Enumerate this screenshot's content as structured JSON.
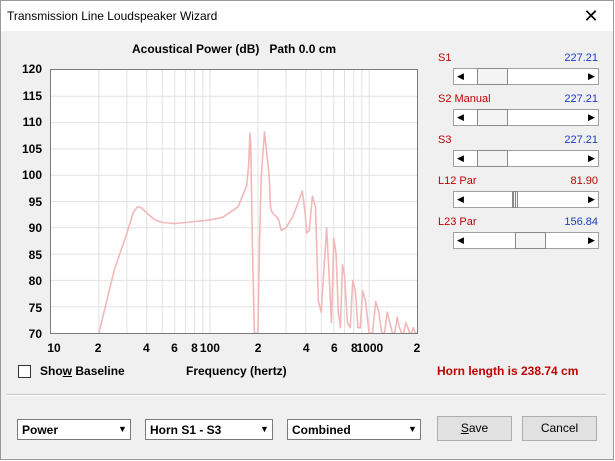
{
  "window": {
    "title": "Transmission Line Loudspeaker Wizard",
    "close": "✕"
  },
  "chart": {
    "title": "Acoustical Power (dB)   Path 0.0 cm",
    "xlabel": "Frequency (hertz)"
  },
  "chart_data": {
    "type": "line",
    "title": "Acoustical Power (dB)   Path 0.0 cm",
    "xlabel": "Frequency (hertz)",
    "ylabel": "",
    "xscale": "log",
    "xlim": [
      10,
      2000
    ],
    "ylim": [
      70,
      120
    ],
    "y_ticks": [
      "120",
      "115",
      "110",
      "105",
      "100",
      "95",
      "90",
      "85",
      "80",
      "75",
      "70"
    ],
    "x_ticks": [
      "10",
      "2",
      "4",
      "6",
      "8",
      "100",
      "2",
      "4",
      "6",
      "8",
      "1000",
      "2"
    ],
    "grid": true,
    "color": "#f2b8b8",
    "series": [
      {
        "x": [
          20,
          25,
          30,
          33,
          35,
          37,
          40,
          45,
          50,
          60,
          70,
          80,
          100,
          120,
          150,
          170,
          175,
          178,
          180,
          182,
          185,
          190,
          200,
          205,
          210,
          220,
          235,
          240,
          245,
          250,
          260,
          270,
          280,
          300,
          330,
          360,
          380,
          395,
          405,
          420,
          440,
          460,
          480,
          500,
          520,
          540,
          560,
          580,
          600,
          620,
          640,
          660,
          680,
          700,
          730,
          760,
          790,
          820,
          850,
          880,
          910,
          950,
          1000,
          1050,
          1100,
          1150,
          1200,
          1250,
          1300,
          1350,
          1400,
          1450,
          1500,
          1550,
          1600,
          1650,
          1700,
          1750,
          1800,
          1850,
          1900,
          1950,
          2000
        ],
        "y": [
          70,
          82,
          89,
          93,
          94,
          93.8,
          92.8,
          91.5,
          91,
          90.8,
          91,
          91.2,
          91.5,
          92,
          94,
          98,
          102,
          108,
          106,
          98,
          85,
          70,
          70,
          88,
          100,
          108.2,
          100,
          94,
          93,
          92.6,
          92.2,
          91.5,
          89.5,
          90,
          92,
          95,
          97,
          93,
          89,
          89.5,
          96,
          94,
          76,
          74,
          82,
          90,
          81,
          72,
          88,
          85,
          74,
          71,
          83,
          81,
          72,
          71,
          80,
          78,
          71,
          71,
          78,
          76,
          70,
          70,
          76,
          74,
          70,
          70,
          74,
          72,
          70,
          70,
          73,
          71,
          70,
          70,
          72,
          71,
          70,
          70,
          71,
          70,
          70
        ]
      }
    ]
  },
  "sliders": [
    {
      "label": "S1",
      "value": "227.21",
      "label_color": "#c00000",
      "value_color": "#1a3cc8",
      "position": 0.12
    },
    {
      "label": "S2  Manual",
      "value": "227.21",
      "label_color": "#c00000",
      "value_color": "#1a3cc8",
      "position": 0.12
    },
    {
      "label": "S3",
      "value": "227.21",
      "label_color": "#c00000",
      "value_color": "#1a3cc8",
      "position": 0.12
    },
    {
      "label": "L12  Par",
      "value": "81.90",
      "label_color": "#c00000",
      "value_color": "#c00000",
      "position": 0.38
    },
    {
      "label": "L23  Par",
      "value": "156.84",
      "label_color": "#c00000",
      "value_color": "#1a3cc8",
      "position": 0.55
    }
  ],
  "baseline": {
    "label_pre": "Sho",
    "label_accel": "w",
    "label_post": " Baseline",
    "checked": false
  },
  "horn_length": "Horn length is 238.74 cm",
  "dropdowns": [
    {
      "value": "Power"
    },
    {
      "value": "Horn S1 - S3"
    },
    {
      "value": "Combined"
    }
  ],
  "buttons": {
    "save_accel": "S",
    "save_rest": "ave",
    "cancel": "Cancel"
  }
}
